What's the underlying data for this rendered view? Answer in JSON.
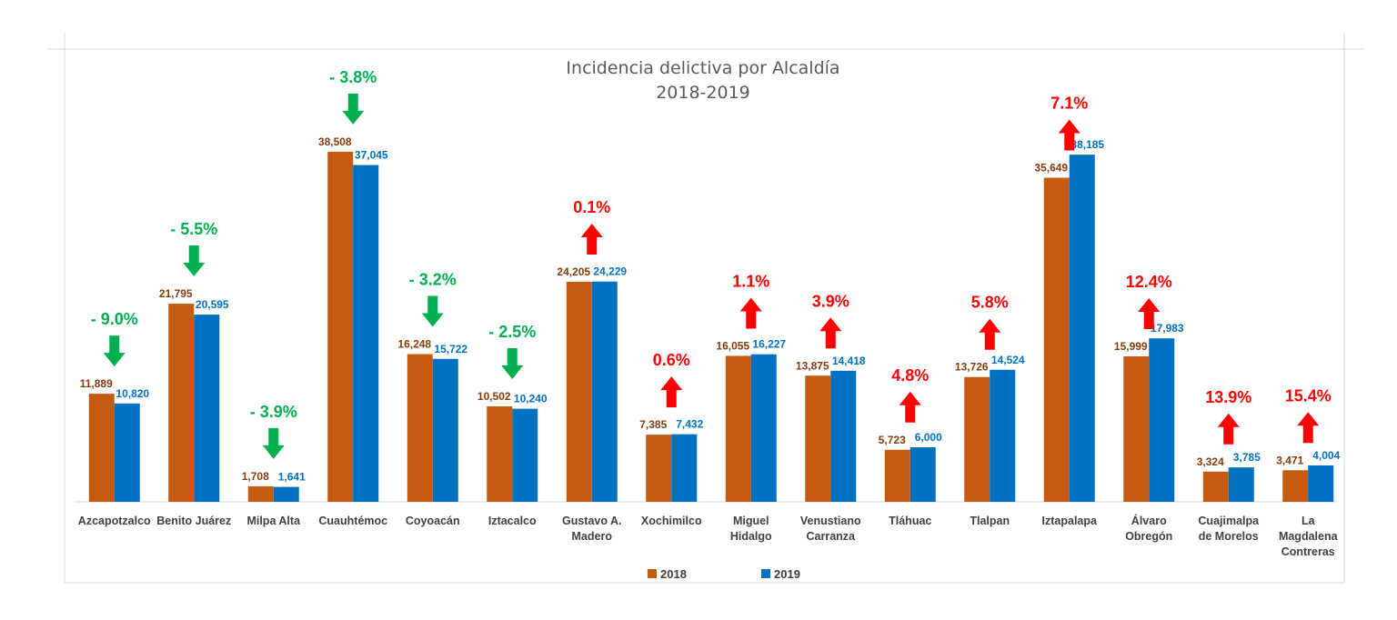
{
  "chart_data": {
    "type": "bar",
    "title": "Incidencia delictiva por Alcaldía",
    "subtitle": "2018-2019",
    "categories": [
      "Azcapotzalco",
      "Benito Juárez",
      "Milpa Alta",
      "Cuauhtémoc",
      "Coyoacán",
      "Iztacalco",
      "Gustavo A. Madero",
      "Xochimilco",
      "Miguel Hidalgo",
      "Venustiano Carranza",
      "Tláhuac",
      "Tlalpan",
      "Iztapalapa",
      "Álvaro Obregón",
      "Cuajimalpa de Morelos",
      "La Magdalena Contreras"
    ],
    "category_lines": [
      [
        "Azcapotzalco"
      ],
      [
        "Benito Juárez"
      ],
      [
        "Milpa Alta"
      ],
      [
        "Cuauhtémoc"
      ],
      [
        "Coyoacán"
      ],
      [
        "Iztacalco"
      ],
      [
        "Gustavo A.",
        "Madero"
      ],
      [
        "Xochimilco"
      ],
      [
        "Miguel",
        "Hidalgo"
      ],
      [
        "Venustiano",
        "Carranza"
      ],
      [
        "Tláhuac"
      ],
      [
        "Tlalpan"
      ],
      [
        "Iztapalapa"
      ],
      [
        "Álvaro",
        "Obregón"
      ],
      [
        "Cuajimalpa",
        "de Morelos"
      ],
      [
        "La",
        "Magdalena",
        "Contreras"
      ]
    ],
    "series": [
      {
        "name": "2018",
        "color": "#c55a11",
        "values": [
          11889,
          21795,
          1708,
          38508,
          16248,
          10502,
          24205,
          7385,
          16055,
          13875,
          5723,
          13726,
          35649,
          15999,
          3324,
          3471
        ],
        "value_labels": [
          "11,889",
          "21,795",
          "1,708",
          "38,508",
          "16,248",
          "10,502",
          "24,205",
          "7,385",
          "16,055",
          "13,875",
          "5,723",
          "13,726",
          "35,649",
          "15,999",
          "3,324",
          "3,471"
        ]
      },
      {
        "name": "2019",
        "color": "#0070c0",
        "values": [
          10820,
          20595,
          1641,
          37045,
          15722,
          10240,
          24229,
          7432,
          16227,
          14418,
          6000,
          14524,
          38185,
          17983,
          3785,
          4004
        ],
        "value_labels": [
          "10,820",
          "20,595",
          "1,641",
          "37,045",
          "15,722",
          "10,240",
          "24,229",
          "7,432",
          "16,227",
          "14,418",
          "6,000",
          "14,524",
          "38,185",
          "17,983",
          "3,785",
          "4,004"
        ]
      }
    ],
    "changes": [
      {
        "label": "- 9.0%",
        "direction": "down"
      },
      {
        "label": "- 5.5%",
        "direction": "down"
      },
      {
        "label": "- 3.9%",
        "direction": "down"
      },
      {
        "label": "- 3.8%",
        "direction": "down"
      },
      {
        "label": "- 3.2%",
        "direction": "down"
      },
      {
        "label": "- 2.5%",
        "direction": "down"
      },
      {
        "label": "0.1%",
        "direction": "up"
      },
      {
        "label": "0.6%",
        "direction": "up"
      },
      {
        "label": "1.1%",
        "direction": "up"
      },
      {
        "label": "3.9%",
        "direction": "up"
      },
      {
        "label": "4.8%",
        "direction": "up"
      },
      {
        "label": "5.8%",
        "direction": "up"
      },
      {
        "label": "7.1%",
        "direction": "up"
      },
      {
        "label": "12.4%",
        "direction": "up"
      },
      {
        "label": "13.9%",
        "direction": "up"
      },
      {
        "label": "15.4%",
        "direction": "up"
      }
    ],
    "colors": {
      "decrease": "#00b050",
      "increase": "#ff0000",
      "label_2018": "#843c0c",
      "label_2019": "#0070c0"
    },
    "ylim": [
      0,
      40000
    ],
    "grid": false,
    "legend_position": "bottom"
  }
}
